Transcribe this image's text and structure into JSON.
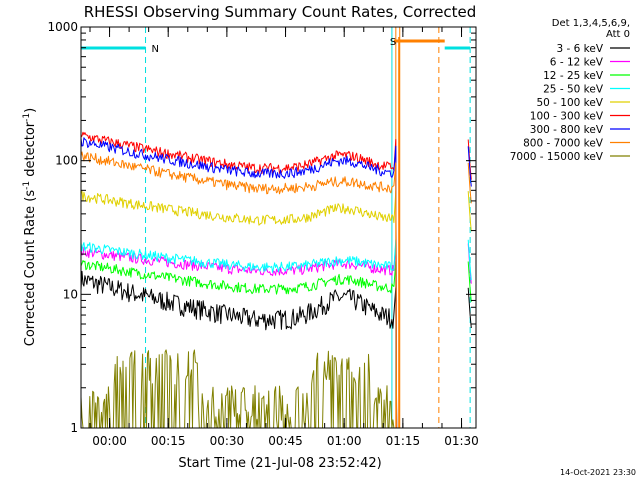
{
  "chart_data": {
    "type": "line",
    "title": "RHESSI Observing Summary Count Rates, Corrected",
    "xlabel": "Start Time (21-Jul-08 23:52:42)",
    "ylabel": "Corrected Count Rate (s",
    "ylabel_sup": "-1",
    "ylabel_mid": " detector",
    "ylabel_end": ")",
    "y_scale": "log",
    "ylim": [
      1,
      1000
    ],
    "xlim_minutes_from_start": [
      0,
      101
    ],
    "x_ticks": [
      {
        "label": "00:00",
        "minutes": 7.3
      },
      {
        "label": "00:15",
        "minutes": 22.3
      },
      {
        "label": "00:30",
        "minutes": 37.3
      },
      {
        "label": "00:45",
        "minutes": 52.3
      },
      {
        "label": "01:00",
        "minutes": 67.3
      },
      {
        "label": "01:15",
        "minutes": 82.3
      },
      {
        "label": "01:30",
        "minutes": 97.3
      }
    ],
    "y_ticks": [
      {
        "label": "1",
        "value": 1
      },
      {
        "label": "10",
        "value": 10
      },
      {
        "label": "100",
        "value": 100
      },
      {
        "label": "1000",
        "value": 1000
      }
    ],
    "legend": {
      "placement": "right",
      "header": [
        "Det 1,3,4,5,6,9,",
        "Att 0"
      ]
    },
    "series": [
      {
        "name": "3 - 6 keV",
        "color": "#000000",
        "start": 13,
        "dip": 6.5,
        "bump": 9.5,
        "end": 7
      },
      {
        "name": "6 - 12 keV",
        "color": "#ff00ff",
        "start": 21,
        "dip": 15,
        "bump": 17,
        "end": 15
      },
      {
        "name": "12 - 25 keV",
        "color": "#00ff00",
        "start": 17,
        "dip": 11,
        "bump": 13,
        "end": 11
      },
      {
        "name": "25 - 50 keV",
        "color": "#00ffff",
        "start": 23,
        "dip": 16,
        "bump": 18,
        "end": 16
      },
      {
        "name": "50 - 100 keV",
        "color": "#e0d000",
        "start": 55,
        "dip": 36,
        "bump": 44,
        "end": 37
      },
      {
        "name": "100 - 300 keV",
        "color": "#ff0000",
        "start": 155,
        "dip": 88,
        "bump": 110,
        "end": 90
      },
      {
        "name": "300 - 800 keV",
        "color": "#0000ff",
        "start": 140,
        "dip": 80,
        "bump": 100,
        "end": 80
      },
      {
        "name": "800 - 7000 keV",
        "color": "#ff8000",
        "start": 110,
        "dip": 62,
        "bump": 70,
        "end": 60
      },
      {
        "name": "7000 - 15000 keV",
        "color": "#808000",
        "start": 1.6,
        "dip": 1.3,
        "bump": 3.0,
        "end": 1.6
      }
    ],
    "annotations": [
      {
        "label": "N",
        "color": "#00e0e0",
        "type": "night",
        "x_minutes": [
          0,
          16.5
        ]
      },
      {
        "label": "S",
        "color": "#ff8000",
        "type": "saa",
        "x_minutes": [
          80,
          93
        ]
      }
    ],
    "eclipse_lines_minutes": [
      16.5,
      79.5,
      99.5
    ],
    "saa_lines_minutes": [
      80.5,
      81.5,
      91.5
    ],
    "footer_date": "14-Oct-2021 23:30"
  }
}
